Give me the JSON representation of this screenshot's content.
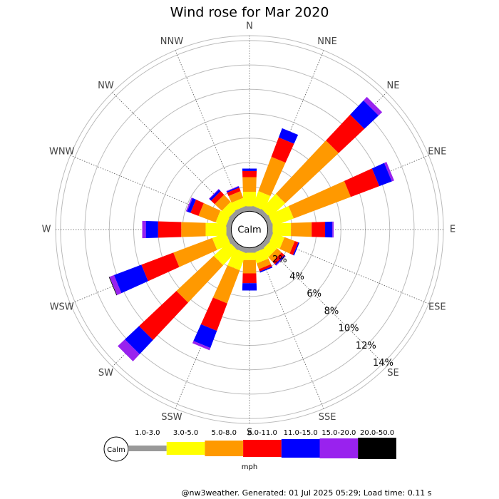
{
  "chart_data": {
    "type": "windrose",
    "title": "Wind rose for Mar 2020",
    "directions": [
      "N",
      "NNE",
      "NE",
      "ENE",
      "E",
      "ESE",
      "SE",
      "SSE",
      "S",
      "SSW",
      "SW",
      "WSW",
      "W",
      "WNW",
      "NW",
      "NNW"
    ],
    "center_label": "Calm",
    "unit": "mph",
    "rlim": [
      0,
      14.4
    ],
    "rticks": [
      {
        "value": 2,
        "label": "2%"
      },
      {
        "value": 4,
        "label": "4%"
      },
      {
        "value": 6,
        "label": "6%"
      },
      {
        "value": 8,
        "label": "8%"
      },
      {
        "value": 10,
        "label": "10%"
      },
      {
        "value": 12,
        "label": "12%"
      },
      {
        "value": 14,
        "label": "14%"
      }
    ],
    "series": [
      {
        "name": "1.0-3.0",
        "color": "#999999",
        "values": [
          0.4,
          0.4,
          0.4,
          0.4,
          0.4,
          0.4,
          0.4,
          0.4,
          0.4,
          0.4,
          0.4,
          0.4,
          0.4,
          0.4,
          0.4,
          0.4
        ]
      },
      {
        "name": "3.0-5.0",
        "color": "#ffff00",
        "values": [
          1.2,
          1.3,
          1.7,
          1.8,
          1.5,
          1.0,
          0.8,
          0.9,
          0.6,
          1.5,
          1.7,
          1.2,
          1.7,
          0.9,
          0.8,
          0.7
        ]
      },
      {
        "name": "5.0-8.0",
        "color": "#ff9900",
        "values": [
          1.2,
          3.0,
          6.0,
          5.0,
          1.7,
          0.9,
          0.5,
          0.5,
          1.1,
          2.9,
          4.2,
          3.4,
          2.0,
          1.5,
          0.8,
          0.6
        ]
      },
      {
        "name": "8.0-11.0",
        "color": "#ff0000",
        "values": [
          0.5,
          1.7,
          2.9,
          2.5,
          1.1,
          0.3,
          0.3,
          0.2,
          0.8,
          2.4,
          4.2,
          2.8,
          1.9,
          0.7,
          0.4,
          0.3
        ]
      },
      {
        "name": "11.0-15.0",
        "color": "#0000ff",
        "values": [
          0.2,
          0.8,
          1.6,
          1.1,
          0.6,
          0.1,
          0.1,
          0.1,
          0.6,
          1.5,
          1.6,
          2.4,
          1.0,
          0.3,
          0.2,
          0.1
        ]
      },
      {
        "name": "15.0-20.0",
        "color": "#9922ee",
        "values": [
          0,
          0,
          0.4,
          0.2,
          0.1,
          0,
          0.05,
          0,
          0,
          0.2,
          0.8,
          0.4,
          0.3,
          0.1,
          0.05,
          0.05
        ]
      },
      {
        "name": "20.0-50.0",
        "color": "#000000",
        "values": [
          0,
          0,
          0,
          0,
          0,
          0,
          0,
          0,
          0,
          0,
          0,
          0.05,
          0,
          0,
          0,
          0
        ]
      }
    ]
  },
  "footer": "@nw3weather. Generated: 01 Jul 2025 05:29; Load time: 0.11 s"
}
